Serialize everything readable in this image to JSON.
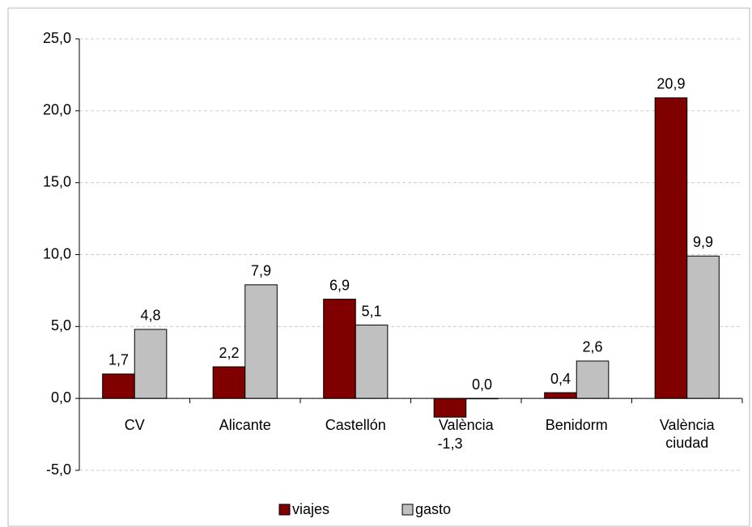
{
  "chart_data": {
    "type": "bar",
    "categories": [
      "CV",
      "Alicante",
      "Castellón",
      "València",
      "Benidorm",
      "València ciudad"
    ],
    "series": [
      {
        "name": "viajes",
        "color": "#800000",
        "values": [
          1.7,
          2.2,
          6.9,
          -1.3,
          0.4,
          20.9
        ],
        "value_labels": [
          "1,7",
          "2,2",
          "6,9",
          "-1,3",
          "0,4",
          "20,9"
        ]
      },
      {
        "name": "gasto",
        "color": "#c0c0c0",
        "values": [
          4.8,
          7.9,
          5.1,
          0.0,
          2.6,
          9.9
        ],
        "value_labels": [
          "4,8",
          "7,9",
          "5,1",
          "0,0",
          "2,6",
          "9,9"
        ]
      }
    ],
    "ylim": [
      -5,
      25
    ],
    "yticks": [
      {
        "value": -5,
        "label": "-5,0"
      },
      {
        "value": 0,
        "label": "0,0"
      },
      {
        "value": 5,
        "label": "5,0"
      },
      {
        "value": 10,
        "label": "10,0"
      },
      {
        "value": 15,
        "label": "15,0"
      },
      {
        "value": 20,
        "label": "20,0"
      },
      {
        "value": 25,
        "label": "25,0"
      }
    ],
    "grid": true,
    "legend": "bottom"
  }
}
